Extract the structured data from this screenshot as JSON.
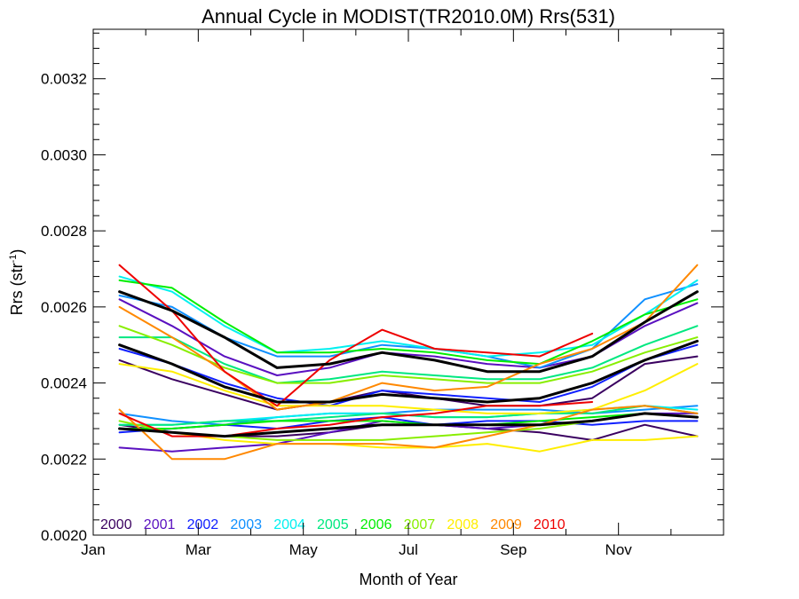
{
  "chart_data": {
    "type": "line",
    "title": "Annual Cycle in MODIST(TR2010.0M) Rrs(531)",
    "xlabel": "Month of Year",
    "ylabel_main": "Rrs (str",
    "ylabel_sup": "-1",
    "ylabel_close": ")",
    "xlim": [
      0,
      12
    ],
    "ylim": [
      0.002,
      0.00333
    ],
    "x_ticks": [
      {
        "label": "Jan",
        "value": 0
      },
      {
        "label": "Mar",
        "value": 2
      },
      {
        "label": "May",
        "value": 4
      },
      {
        "label": "Jul",
        "value": 6
      },
      {
        "label": "Sep",
        "value": 8
      },
      {
        "label": "Nov",
        "value": 10
      }
    ],
    "y_ticks": [
      {
        "label": "0.0020",
        "value": 0.002
      },
      {
        "label": "0.0022",
        "value": 0.0022
      },
      {
        "label": "0.0024",
        "value": 0.0024
      },
      {
        "label": "0.0026",
        "value": 0.0026
      },
      {
        "label": "0.0028",
        "value": 0.0028
      },
      {
        "label": "0.0030",
        "value": 0.003
      },
      {
        "label": "0.0032",
        "value": 0.0032
      }
    ],
    "x": [
      0.5,
      1.5,
      2.5,
      3.5,
      4.5,
      5.5,
      6.5,
      7.5,
      8.5,
      9.5,
      10.5,
      11.5
    ],
    "legend": [
      {
        "label": "2000",
        "color": "#3a0060"
      },
      {
        "label": "2001",
        "color": "#5a10c0"
      },
      {
        "label": "2002",
        "color": "#1020ff"
      },
      {
        "label": "2003",
        "color": "#1090ff"
      },
      {
        "label": "2004",
        "color": "#00f0f0"
      },
      {
        "label": "2005",
        "color": "#00e880"
      },
      {
        "label": "2006",
        "color": "#00ee00"
      },
      {
        "label": "2007",
        "color": "#88ee00"
      },
      {
        "label": "2008",
        "color": "#ffee00"
      },
      {
        "label": "2009",
        "color": "#ff8800"
      },
      {
        "label": "2010",
        "color": "#ee0000"
      }
    ],
    "series": [
      {
        "color": "#000000",
        "bold": true,
        "values": [
          0.00264,
          0.00259,
          0.00252,
          0.00244,
          0.00245,
          0.00248,
          0.00246,
          0.00243,
          0.00243,
          0.00247,
          0.00256,
          0.00264
        ]
      },
      {
        "color": "#000000",
        "bold": true,
        "values": [
          0.0025,
          0.00245,
          0.00239,
          0.00235,
          0.00235,
          0.00237,
          0.00236,
          0.00235,
          0.00236,
          0.0024,
          0.00246,
          0.00251
        ]
      },
      {
        "color": "#000000",
        "bold": true,
        "values": [
          0.00228,
          0.00227,
          0.00226,
          0.00227,
          0.00228,
          0.00229,
          0.00229,
          0.00229,
          0.00229,
          0.0023,
          0.00232,
          0.00231
        ]
      },
      {
        "color": "#3a0060",
        "values": [
          0.00246,
          0.00241,
          0.00237,
          0.00233,
          0.00235,
          0.00238,
          0.00236,
          0.00234,
          0.00234,
          0.00236,
          0.00245,
          0.00247
        ]
      },
      {
        "color": "#3a0060",
        "values": [
          0.00229,
          0.00227,
          0.00226,
          0.00226,
          0.00227,
          0.00229,
          0.00229,
          0.00228,
          0.00227,
          0.00225,
          0.00229,
          0.00226
        ]
      },
      {
        "color": "#5a10c0",
        "values": [
          0.00262,
          0.00255,
          0.00247,
          0.00242,
          0.00244,
          0.00248,
          0.00247,
          0.00245,
          0.00244,
          0.00247,
          0.00255,
          0.00261
        ]
      },
      {
        "color": "#5a10c0",
        "values": [
          0.00223,
          0.00222,
          0.00223,
          0.00224,
          0.00227,
          0.0023,
          0.00229,
          0.00228,
          0.00229,
          0.0023,
          0.00232,
          0.00232
        ]
      },
      {
        "color": "#1020ff",
        "values": [
          0.00249,
          0.00245,
          0.0024,
          0.00236,
          0.00234,
          0.00238,
          0.00237,
          0.00236,
          0.00235,
          0.00239,
          0.00246,
          0.0025
        ]
      },
      {
        "color": "#1020ff",
        "values": [
          0.00227,
          0.00228,
          0.00229,
          0.00228,
          0.0023,
          0.00231,
          0.00229,
          0.0023,
          0.0023,
          0.00229,
          0.0023,
          0.0023
        ]
      },
      {
        "color": "#1090ff",
        "values": [
          0.00263,
          0.0026,
          0.00252,
          0.00247,
          0.00247,
          0.0025,
          0.00249,
          0.00247,
          0.00244,
          0.00249,
          0.00262,
          0.00266
        ]
      },
      {
        "color": "#1090ff",
        "values": [
          0.00232,
          0.0023,
          0.00229,
          0.00231,
          0.00232,
          0.00232,
          0.00233,
          0.00233,
          0.00233,
          0.00232,
          0.00233,
          0.00234
        ]
      },
      {
        "color": "#00f0f0",
        "values": [
          0.00268,
          0.00264,
          0.00255,
          0.00248,
          0.00249,
          0.00251,
          0.00249,
          0.00247,
          0.00248,
          0.0025,
          0.00258,
          0.00267
        ]
      },
      {
        "color": "#00f0f0",
        "values": [
          0.00229,
          0.00229,
          0.0023,
          0.00231,
          0.00232,
          0.00232,
          0.00231,
          0.00231,
          0.00232,
          0.00233,
          0.00234,
          0.00233
        ]
      },
      {
        "color": "#00e880",
        "values": [
          0.00252,
          0.00252,
          0.00245,
          0.0024,
          0.00241,
          0.00243,
          0.00242,
          0.00241,
          0.00241,
          0.00244,
          0.0025,
          0.00255
        ]
      },
      {
        "color": "#00e880",
        "values": [
          0.00229,
          0.00229,
          0.0023,
          0.0023,
          0.00231,
          0.00232,
          0.00231,
          0.00231,
          0.00232,
          0.00232,
          0.00234,
          0.00232
        ]
      },
      {
        "color": "#00ee00",
        "values": [
          0.00267,
          0.00265,
          0.00256,
          0.00248,
          0.00248,
          0.00249,
          0.00248,
          0.00246,
          0.00245,
          0.00251,
          0.00258,
          0.00262
        ]
      },
      {
        "color": "#00ee00",
        "values": [
          0.00228,
          0.00228,
          0.00229,
          0.0023,
          0.0023,
          0.0023,
          0.00229,
          0.00229,
          0.0023,
          0.00231,
          0.00232,
          0.00231
        ]
      },
      {
        "color": "#88ee00",
        "values": [
          0.00255,
          0.0025,
          0.00244,
          0.0024,
          0.0024,
          0.00242,
          0.00241,
          0.0024,
          0.0024,
          0.00243,
          0.00248,
          0.00252
        ]
      },
      {
        "color": "#88ee00",
        "values": [
          0.0023,
          0.00227,
          0.00226,
          0.00225,
          0.00225,
          0.00225,
          0.00226,
          0.00227,
          0.00228,
          0.0023,
          0.00232,
          0.00231
        ]
      },
      {
        "color": "#ffee00",
        "values": [
          0.00245,
          0.00243,
          0.00238,
          0.00234,
          0.00234,
          0.00234,
          0.00233,
          0.00232,
          0.00232,
          0.00233,
          0.00238,
          0.00245
        ]
      },
      {
        "color": "#ffee00",
        "values": [
          0.00228,
          0.00227,
          0.00225,
          0.00224,
          0.00224,
          0.00223,
          0.00223,
          0.00224,
          0.00222,
          0.00225,
          0.00225,
          0.00226
        ]
      },
      {
        "color": "#ff8800",
        "values": [
          0.0026,
          0.00252,
          0.00243,
          0.00233,
          0.00235,
          0.0024,
          0.00238,
          0.00239,
          0.00245,
          0.00249,
          0.00256,
          0.00271
        ]
      },
      {
        "color": "#ff8800",
        "values": [
          0.00233,
          0.0022,
          0.0022,
          0.00224,
          0.00224,
          0.00224,
          0.00223,
          0.00226,
          0.00229,
          0.00233,
          0.00234,
          0.00232
        ]
      },
      {
        "color": "#ee0000",
        "values": [
          0.00271,
          0.00259,
          0.00243,
          0.00234,
          0.00246,
          0.00254,
          0.00249,
          0.00248,
          0.00247,
          0.00253,
          null,
          null
        ]
      },
      {
        "color": "#ee0000",
        "values": [
          0.00232,
          0.00226,
          0.00226,
          0.00228,
          0.00229,
          0.00231,
          0.00232,
          0.00234,
          0.00234,
          0.00235,
          null,
          null
        ]
      }
    ]
  }
}
